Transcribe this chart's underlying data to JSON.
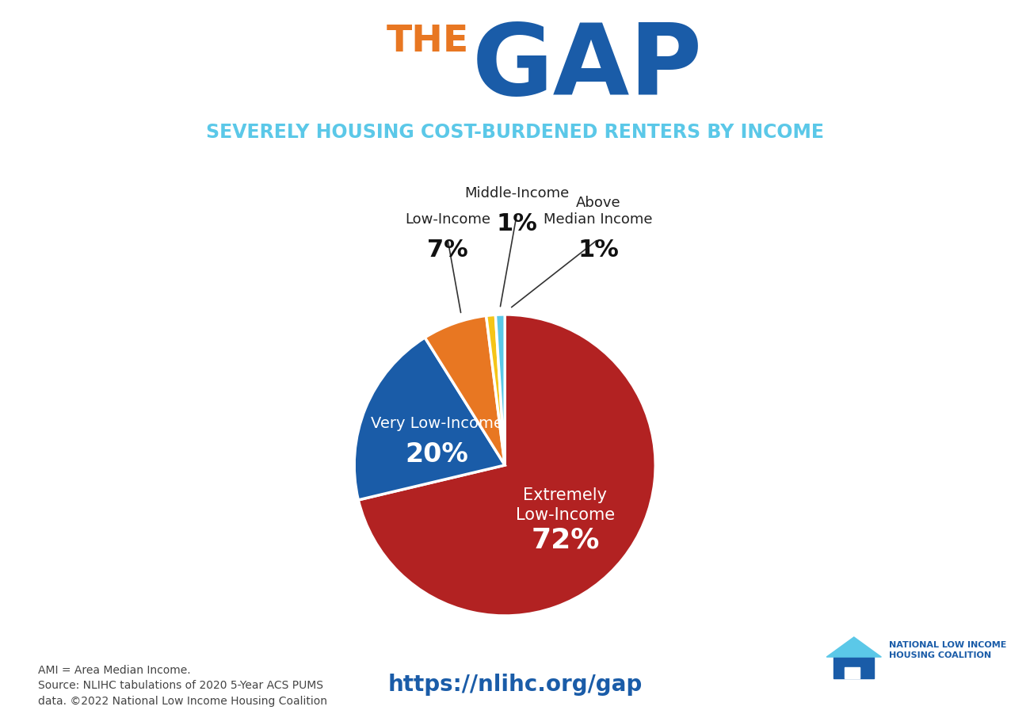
{
  "title_the": "THE",
  "title_gap": "GAP",
  "subtitle": "SEVERELY HOUSING COST-BURDENED RENTERS BY INCOME",
  "slices": [
    {
      "label": "Extremely\nLow-Income",
      "pct": 72,
      "color": "#B22222",
      "label_color": "white",
      "text_inside": true
    },
    {
      "label": "Very Low-Income",
      "pct": 20,
      "color": "#1A5CA8",
      "label_color": "white",
      "text_inside": true
    },
    {
      "label": "Low-Income",
      "pct": 7,
      "color": "#E87722",
      "label_color": "black",
      "text_inside": false
    },
    {
      "label": "Middle-Income",
      "pct": 1,
      "color": "#F5C518",
      "label_color": "black",
      "text_inside": false
    },
    {
      "label": "Above\nMedian Income",
      "pct": 1,
      "color": "#5BC8E8",
      "label_color": "black",
      "text_inside": false
    }
  ],
  "footer_left": "AMI = Area Median Income.\nSource: NLIHC tabulations of 2020 5-Year ACS PUMS\ndata. ©2022 National Low Income Housing Coalition",
  "footer_url": "https://nlihc.org/gap",
  "background_color": "#FFFFFF",
  "title_the_color": "#E87722",
  "title_gap_color": "#1A5CA8",
  "subtitle_color": "#5BC8E8",
  "startangle": 90,
  "nlihc_text": "NATIONAL LOW INCOME\nHOUSING COALITION"
}
